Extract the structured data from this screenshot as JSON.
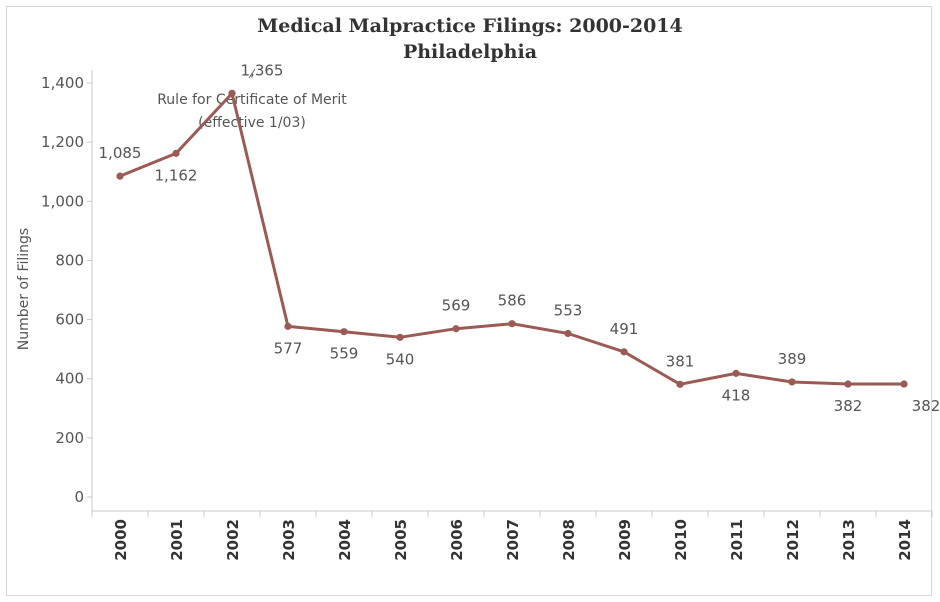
{
  "chart_data": {
    "type": "line",
    "title": "Medical Malpractice Filings: 2000-2014",
    "subtitle": "Philadelphia",
    "ylabel": "Number of Filings",
    "xlabel": "",
    "x": [
      "2000",
      "2001",
      "2002",
      "2003",
      "2004",
      "2005",
      "2006",
      "2007",
      "2008",
      "2009",
      "2010",
      "2011",
      "2012",
      "2013",
      "2014"
    ],
    "series": [
      {
        "values": [
          1085,
          1162,
          1365,
          577,
          559,
          540,
          569,
          586,
          553,
          491,
          381,
          418,
          389,
          382,
          382
        ],
        "data_labels": [
          "1,085",
          "1,162",
          "1,365",
          "577",
          "559",
          "540",
          "569",
          "586",
          "553",
          "491",
          "381",
          "418",
          "389",
          "382",
          "382"
        ]
      }
    ],
    "ylim": [
      0,
      1400
    ],
    "yticks": [
      0,
      200,
      400,
      600,
      800,
      1000,
      1200,
      1400
    ],
    "ytick_labels": [
      "0",
      "200",
      "400",
      "600",
      "800",
      "1,000",
      "1,200",
      "1,400"
    ],
    "grid": false,
    "line_color": "#9b5b54",
    "annotation": {
      "line1": "Rule for Certificate of Merit",
      "line2": "(effective 1/03)"
    }
  }
}
